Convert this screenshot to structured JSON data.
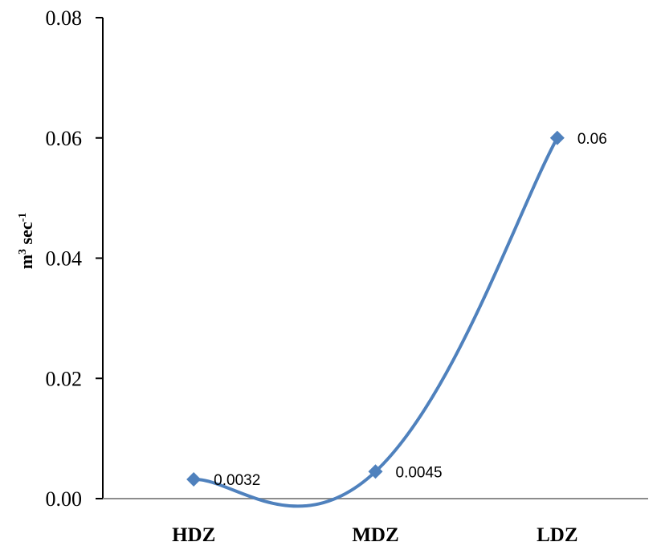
{
  "chart_data": {
    "type": "line",
    "categories": [
      "HDZ",
      "MDZ",
      "LDZ"
    ],
    "series": [
      {
        "values": [
          0.0032,
          0.0045,
          0.06
        ],
        "data_labels": [
          "0.0032",
          "0.0045",
          "0.06"
        ]
      }
    ],
    "ylabel": {
      "base": "m",
      "sup1": "3",
      "mid": " sec",
      "sup2": "-1"
    },
    "ylim": [
      0,
      0.08
    ],
    "yticks": [
      "0.00",
      "0.02",
      "0.04",
      "0.06",
      "0.08"
    ],
    "smoothed": true,
    "marker": "diamond",
    "grid": false,
    "line_color": "#4F81BD"
  }
}
